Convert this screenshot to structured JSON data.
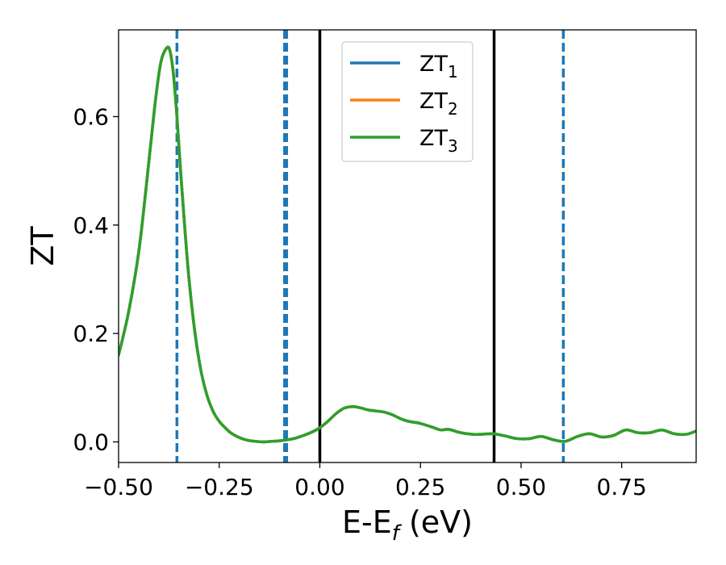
{
  "chart_data": {
    "type": "line",
    "xlabel": "E-E",
    "xlabel_sub": "f",
    "xlabel_unit": " (eV)",
    "ylabel": "ZT",
    "xlim": [
      -0.5,
      0.935
    ],
    "ylim": [
      -0.038,
      0.76
    ],
    "x_ticks": [
      -0.5,
      -0.25,
      0.0,
      0.25,
      0.5,
      0.75
    ],
    "x_tick_labels": [
      "−0.50",
      "−0.25",
      "0.00",
      "0.25",
      "0.50",
      "0.75"
    ],
    "y_ticks": [
      0.0,
      0.2,
      0.4,
      0.6
    ],
    "y_tick_labels": [
      "0.0",
      "0.2",
      "0.4",
      "0.6"
    ],
    "grid": false,
    "legend_position": "top-center",
    "series": [
      {
        "name": "ZT",
        "sub": "1",
        "color": "#1f77b4"
      },
      {
        "name": "ZT",
        "sub": "2",
        "color": "#ff7f0e"
      },
      {
        "name": "ZT",
        "sub": "3",
        "color": "#2ca02c"
      }
    ],
    "curve": {
      "x": [
        -0.5,
        -0.475,
        -0.45,
        -0.43,
        -0.41,
        -0.395,
        -0.38,
        -0.372,
        -0.364,
        -0.355,
        -0.345,
        -0.335,
        -0.325,
        -0.31,
        -0.295,
        -0.28,
        -0.265,
        -0.25,
        -0.235,
        -0.22,
        -0.2,
        -0.18,
        -0.16,
        -0.14,
        -0.12,
        -0.1,
        -0.08,
        -0.06,
        -0.04,
        -0.02,
        0.0,
        0.02,
        0.04,
        0.06,
        0.08,
        0.1,
        0.12,
        0.14,
        0.16,
        0.18,
        0.2,
        0.22,
        0.25,
        0.28,
        0.3,
        0.32,
        0.35,
        0.38,
        0.4,
        0.43,
        0.46,
        0.49,
        0.52,
        0.55,
        0.58,
        0.61,
        0.64,
        0.67,
        0.7,
        0.73,
        0.76,
        0.79,
        0.82,
        0.85,
        0.88,
        0.91,
        0.935
      ],
      "y": [
        0.16,
        0.24,
        0.35,
        0.48,
        0.62,
        0.7,
        0.727,
        0.72,
        0.68,
        0.6,
        0.49,
        0.39,
        0.3,
        0.2,
        0.13,
        0.085,
        0.056,
        0.038,
        0.026,
        0.016,
        0.008,
        0.003,
        0.001,
        0.0,
        0.001,
        0.002,
        0.004,
        0.007,
        0.012,
        0.018,
        0.026,
        0.038,
        0.052,
        0.062,
        0.065,
        0.063,
        0.059,
        0.057,
        0.055,
        0.05,
        0.043,
        0.038,
        0.034,
        0.027,
        0.022,
        0.023,
        0.017,
        0.014,
        0.014,
        0.015,
        0.011,
        0.006,
        0.006,
        0.01,
        0.004,
        0.001,
        0.01,
        0.015,
        0.009,
        0.012,
        0.022,
        0.017,
        0.017,
        0.022,
        0.015,
        0.014,
        0.02
      ]
    },
    "vlines": [
      {
        "x": -0.355,
        "color": "#1f77b4",
        "style": "dashed",
        "width": 3.5
      },
      {
        "x": -0.085,
        "color": "#1f77b4",
        "style": "dashed",
        "width": 6
      },
      {
        "x": 0.0,
        "color": "#000000",
        "style": "solid",
        "width": 3.5
      },
      {
        "x": 0.433,
        "color": "#000000",
        "style": "solid",
        "width": 3.5
      },
      {
        "x": 0.605,
        "color": "#1f77b4",
        "style": "dashed",
        "width": 3.5
      }
    ]
  }
}
